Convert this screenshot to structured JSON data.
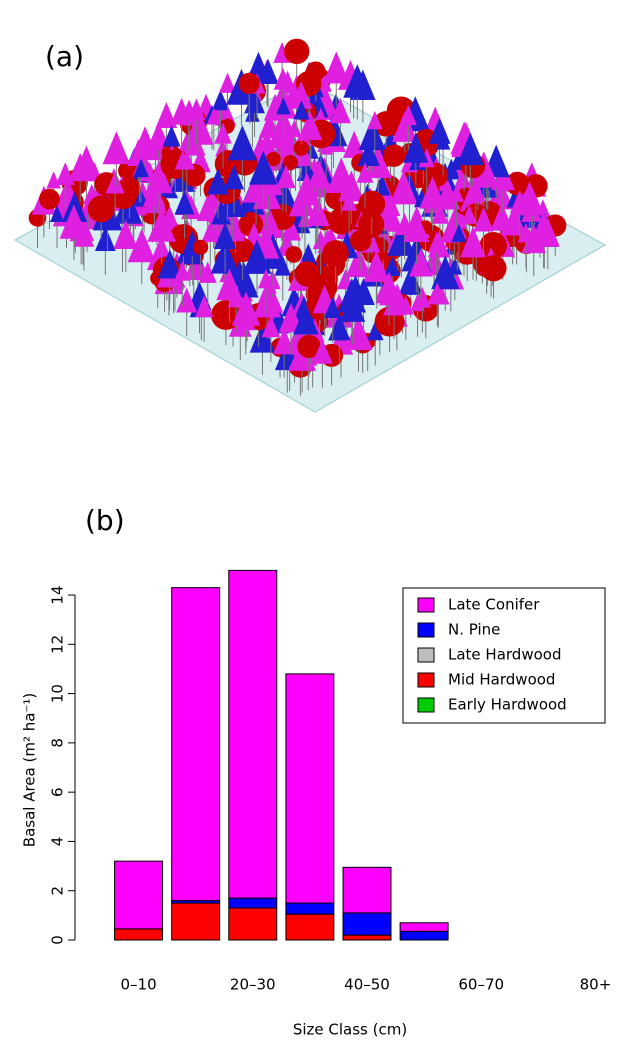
{
  "image_label": "(a)",
  "chart_data": {
    "type": "bar",
    "stacked": true,
    "label": "(b)",
    "xlabel": "Size Class (cm)",
    "ylabel": "Basal Area (m² ha⁻¹)",
    "categories": [
      "0–10",
      null,
      "20–30",
      null,
      "40–50",
      null,
      "60–70",
      null,
      "80+"
    ],
    "series": [
      {
        "name": "Late Conifer",
        "color": "#ff00ff",
        "values": [
          2.75,
          12.7,
          13.3,
          9.3,
          1.85,
          0.35,
          0,
          0,
          0
        ]
      },
      {
        "name": "N. Pine",
        "color": "#0000ff",
        "values": [
          0,
          0.1,
          0.4,
          0.45,
          0.9,
          0.35,
          0,
          0,
          0
        ]
      },
      {
        "name": "Late Hardwood",
        "color": "#bebebe",
        "values": [
          0,
          0,
          0,
          0,
          0,
          0,
          0,
          0,
          0
        ]
      },
      {
        "name": "Mid Hardwood",
        "color": "#ff0000",
        "values": [
          0.45,
          1.5,
          1.3,
          1.05,
          0.2,
          0,
          0,
          0,
          0
        ]
      },
      {
        "name": "Early Hardwood",
        "color": "#00cd00",
        "values": [
          0,
          0,
          0,
          0,
          0,
          0,
          0,
          0,
          0
        ]
      }
    ],
    "ylim": [
      0,
      15.3
    ],
    "yticks": [
      0,
      2,
      4,
      6,
      8,
      10,
      12,
      14
    ],
    "legend": "topright"
  }
}
